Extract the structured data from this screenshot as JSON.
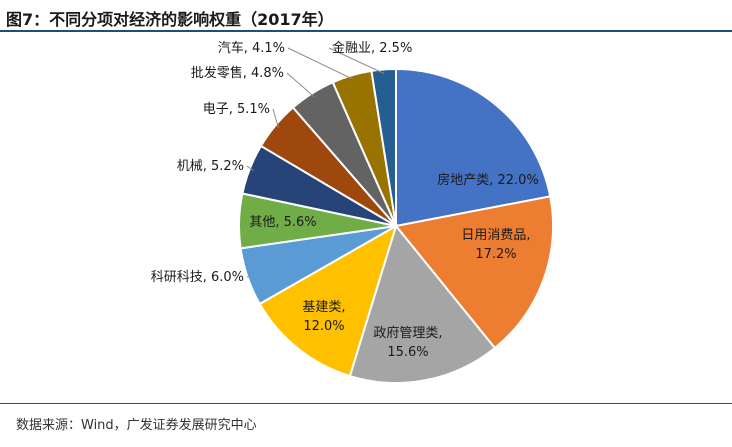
{
  "figure": {
    "title": "图7：不同分项对经济的影响权重（2017年）",
    "source": "数据来源：Wind，广发证券发展研究中心"
  },
  "chart_data": {
    "type": "pie",
    "title": "不同分项对经济的影响权重（2017年）",
    "unit": "%",
    "legend": "none",
    "slices": [
      {
        "name": "房地产类",
        "value": 22.0,
        "label": "房地产类, 22.0%",
        "color": "#4472C4"
      },
      {
        "name": "日用消费品",
        "value": 17.2,
        "label": "日用消费品, 17.2%",
        "color": "#ED7D31"
      },
      {
        "name": "政府管理类",
        "value": 15.6,
        "label": "政府管理类, 15.6%",
        "color": "#A5A5A5"
      },
      {
        "name": "基建类",
        "value": 12.0,
        "label": "基建类, 12.0%",
        "color": "#FFC000"
      },
      {
        "name": "科研科技",
        "value": 6.0,
        "label": "科研科技, 6.0%",
        "color": "#5B9BD5"
      },
      {
        "name": "其他",
        "value": 5.6,
        "label": "其他, 5.6%",
        "color": "#70AD47"
      },
      {
        "name": "机械",
        "value": 5.2,
        "label": "机械, 5.2%",
        "color": "#264478"
      },
      {
        "name": "电子",
        "value": 5.1,
        "label": "电子, 5.1%",
        "color": "#9E480E"
      },
      {
        "name": "批发零售",
        "value": 4.8,
        "label": "批发零售, 4.8%",
        "color": "#636363"
      },
      {
        "name": "汽车",
        "value": 4.1,
        "label": "汽车, 4.1%",
        "color": "#997300"
      },
      {
        "name": "金融业",
        "value": 2.5,
        "label": "金融业, 2.5%",
        "color": "#255E91"
      }
    ]
  }
}
